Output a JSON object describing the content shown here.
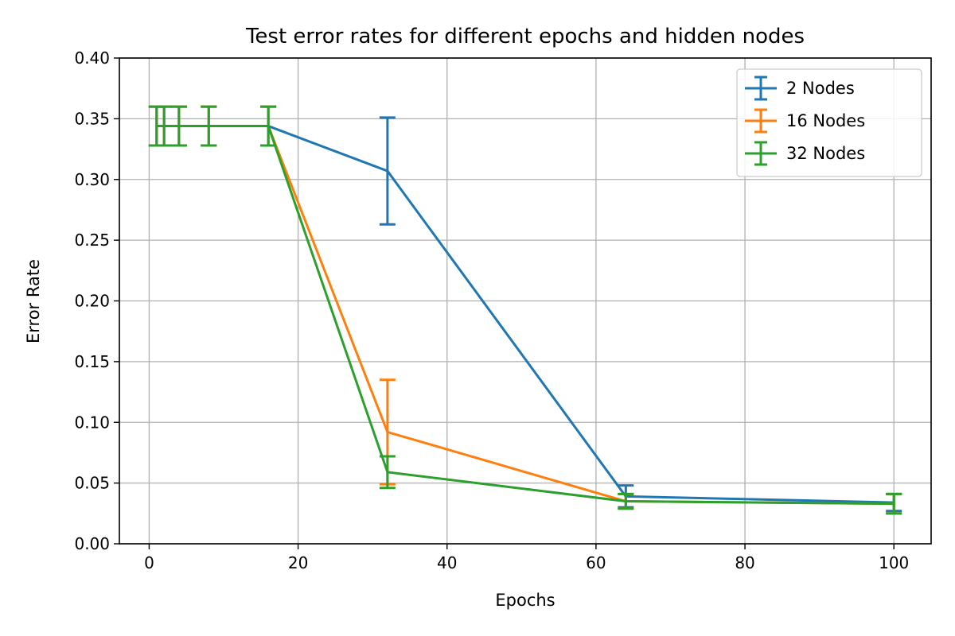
{
  "chart_data": {
    "type": "line",
    "title": "Test error rates for different epochs and hidden nodes",
    "xlabel": "Epochs",
    "ylabel": "Error Rate",
    "xlim": [
      -4,
      105
    ],
    "ylim": [
      0,
      0.4
    ],
    "xticks": [
      0,
      20,
      40,
      60,
      80,
      100
    ],
    "xtick_labels": [
      "0",
      "20",
      "40",
      "60",
      "80",
      "100"
    ],
    "yticks": [
      0,
      0.05,
      0.1,
      0.15,
      0.2,
      0.25,
      0.3,
      0.35,
      0.4
    ],
    "ytick_labels": [
      "0.00",
      "0.05",
      "0.10",
      "0.15",
      "0.20",
      "0.25",
      "0.30",
      "0.35",
      "0.40"
    ],
    "grid": true,
    "legend_position": "top-right",
    "series": [
      {
        "name": "2 Nodes",
        "color": "#1f77b4",
        "x": [
          1,
          2,
          4,
          8,
          16,
          32,
          64,
          100
        ],
        "y": [
          0.344,
          0.344,
          0.344,
          0.344,
          0.344,
          0.307,
          0.039,
          0.034
        ],
        "err": [
          0.016,
          0.016,
          0.016,
          0.016,
          0.016,
          0.044,
          0.009,
          0.007
        ]
      },
      {
        "name": "16 Nodes",
        "color": "#ff7f0e",
        "x": [
          1,
          2,
          4,
          8,
          16,
          32,
          64,
          100
        ],
        "y": [
          0.344,
          0.344,
          0.344,
          0.344,
          0.344,
          0.092,
          0.035,
          0.033
        ],
        "err": [
          0.016,
          0.016,
          0.016,
          0.016,
          0.016,
          0.043,
          0.006,
          0.008
        ]
      },
      {
        "name": "32 Nodes",
        "color": "#2ca02c",
        "x": [
          1,
          2,
          4,
          8,
          16,
          32,
          64,
          100
        ],
        "y": [
          0.344,
          0.344,
          0.344,
          0.344,
          0.344,
          0.059,
          0.035,
          0.033
        ],
        "err": [
          0.016,
          0.016,
          0.016,
          0.016,
          0.016,
          0.013,
          0.006,
          0.008
        ]
      }
    ]
  }
}
